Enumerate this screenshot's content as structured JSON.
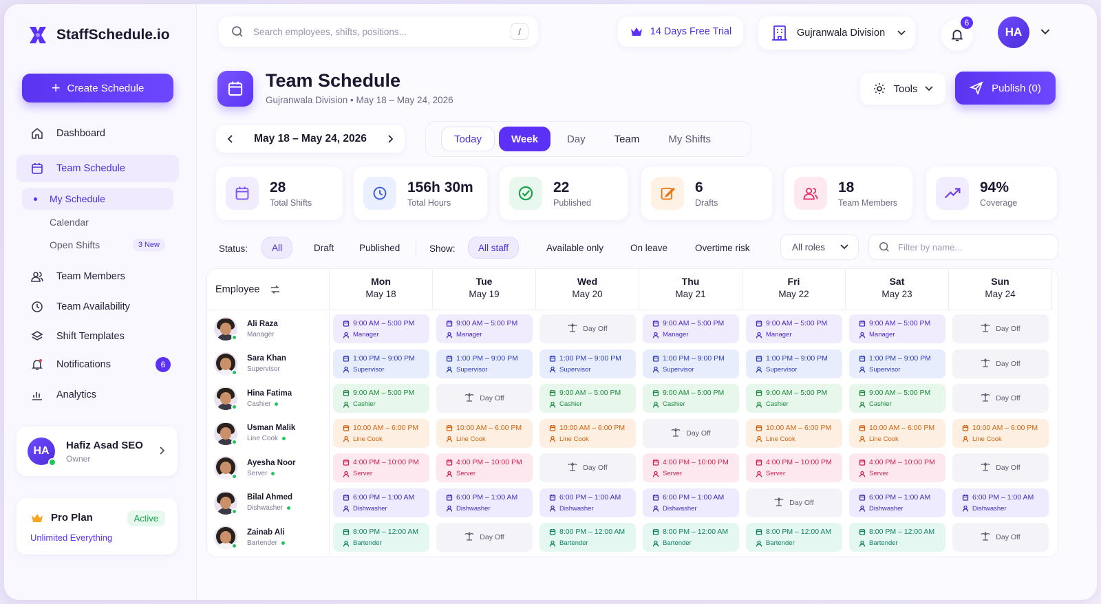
{
  "app": {
    "brand": "StaffSchedule.io"
  },
  "sidebar": {
    "create_label": "Create Schedule",
    "items": [
      {
        "label": "Dashboard",
        "icon": "home-icon"
      },
      {
        "label": "Team Schedule",
        "icon": "calendar-icon"
      },
      {
        "label": "Team Members",
        "icon": "users-icon"
      },
      {
        "label": "Team Availability",
        "icon": "clock-icon"
      },
      {
        "label": "Shift Templates",
        "icon": "layers-icon"
      },
      {
        "label": "Notifications",
        "icon": "bell-icon",
        "badge": "6"
      },
      {
        "label": "Analytics",
        "icon": "bar-chart-icon"
      }
    ],
    "sub_items": [
      {
        "label": "My Schedule"
      },
      {
        "label": "Calendar"
      },
      {
        "label": "Open Shifts",
        "badge": "3 New"
      }
    ],
    "user": {
      "initials": "HA",
      "name": "Hafiz Asad SEO",
      "role": "Owner"
    },
    "plan": {
      "title": "Pro Plan",
      "status": "Active",
      "subtitle": "Unlimited Everything"
    }
  },
  "topbar": {
    "search_placeholder": "Search employees, shifts, positions...",
    "search_shortcut": "/",
    "trial": "14 Days Free Trial",
    "division": "Gujranwala Division",
    "notif_count": "6",
    "avatar_initials": "HA"
  },
  "page": {
    "title": "Team Schedule",
    "subtitle": "Gujranwala Division • May 18 – May 24, 2026",
    "tools_label": "Tools",
    "publish_label": "Publish (0)",
    "date_range": "May 18 – May 24, 2026",
    "view_tabs": [
      "Today",
      "Week",
      "Day",
      "Team",
      "My Shifts"
    ],
    "active_tab": "Week"
  },
  "stats": [
    {
      "value": "28",
      "label": "Total Shifts",
      "color": "#7a55ff",
      "bg": "#f1edff",
      "icon": "calendar-icon"
    },
    {
      "value": "156h 30m",
      "label": "Total Hours",
      "color": "#3b5bdb",
      "bg": "#eaf0ff",
      "icon": "clock-icon"
    },
    {
      "value": "22",
      "label": "Published",
      "color": "#16a34a",
      "bg": "#e9f8ee",
      "icon": "check-circle-icon"
    },
    {
      "value": "6",
      "label": "Drafts",
      "color": "#ea7a1a",
      "bg": "#fff1e4",
      "icon": "edit-icon"
    },
    {
      "value": "18",
      "label": "Team Members",
      "color": "#e4366b",
      "bg": "#ffe9f0",
      "icon": "users-icon"
    },
    {
      "value": "94%",
      "label": "Coverage",
      "color": "#6d3fe8",
      "bg": "#f1edff",
      "icon": "trending-up-icon"
    }
  ],
  "filters": {
    "status_label": "Status:",
    "status_options": [
      "All",
      "Draft",
      "Published"
    ],
    "show_label": "Show:",
    "show_options": [
      "All staff",
      "Available only",
      "On leave",
      "Overtime risk"
    ],
    "roles_label": "All roles",
    "filter_placeholder": "Filter by name..."
  },
  "grid": {
    "employee_header": "Employee",
    "days": [
      {
        "name": "Mon",
        "date": "May 18"
      },
      {
        "name": "Tue",
        "date": "May 19"
      },
      {
        "name": "Wed",
        "date": "May 20"
      },
      {
        "name": "Thu",
        "date": "May 21"
      },
      {
        "name": "Fri",
        "date": "May 22"
      },
      {
        "name": "Sat",
        "date": "May 23"
      },
      {
        "name": "Sun",
        "date": "May 24"
      }
    ],
    "day_off_label": "Day Off",
    "rows": [
      {
        "name": "Ali Raza",
        "role": "Manager",
        "gender": "m",
        "status_dot": false,
        "color": "purple",
        "time": "9:00 AM – 5:00 PM",
        "off": [
          2,
          6
        ]
      },
      {
        "name": "Sara Khan",
        "role": "Supervisor",
        "gender": "f",
        "status_dot": false,
        "color": "blue",
        "time": "1:00 PM – 9:00 PM",
        "off": [
          6
        ]
      },
      {
        "name": "Hina Fatima",
        "role": "Cashier",
        "gender": "m",
        "status_dot": true,
        "color": "green",
        "time": "9:00 AM – 5:00 PM",
        "off": [
          1,
          6
        ]
      },
      {
        "name": "Usman Malik",
        "role": "Line Cook",
        "gender": "m",
        "status_dot": true,
        "color": "orange",
        "time": "10:00 AM – 6:00 PM",
        "off": [
          3
        ]
      },
      {
        "name": "Ayesha Noor",
        "role": "Server",
        "gender": "f",
        "status_dot": true,
        "color": "pink",
        "time": "4:00 PM – 10:00 PM",
        "off": [
          2,
          6
        ]
      },
      {
        "name": "Bilal Ahmed",
        "role": "Dishwasher",
        "gender": "m",
        "status_dot": true,
        "color": "indigo",
        "time": "6:00 PM – 1:00 AM",
        "off": [
          4
        ]
      },
      {
        "name": "Zainab Ali",
        "role": "Bartender",
        "gender": "f",
        "status_dot": true,
        "color": "teal",
        "time": "8:00 PM – 12:00 AM",
        "off": [
          1,
          6
        ]
      }
    ]
  }
}
